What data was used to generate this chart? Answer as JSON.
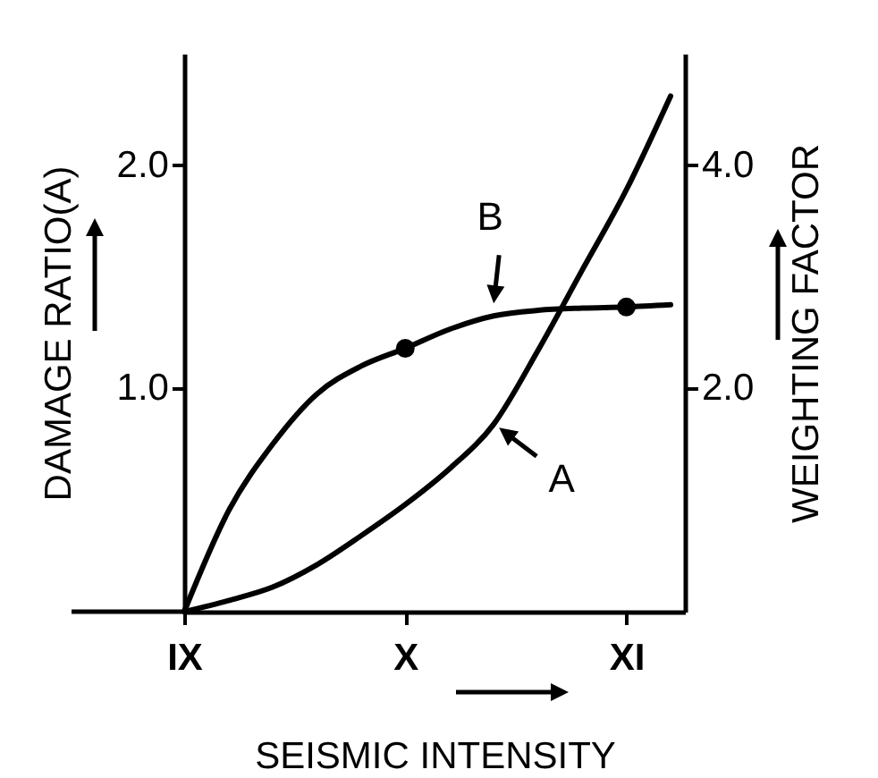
{
  "chart_data": {
    "type": "line",
    "xlabel": "SEISMIC INTENSITY",
    "ylabel": "DAMAGE RATIO(A)",
    "y2label": "WEIGHTING FACTOR",
    "categories": [
      "IX",
      null,
      null,
      null,
      null,
      "X",
      null,
      null,
      null,
      null,
      "XI",
      null
    ],
    "ylim": [
      0,
      2.5
    ],
    "yticks": [
      {
        "value": 1,
        "label": "1.0"
      },
      {
        "value": 2,
        "label": "2.0"
      }
    ],
    "y2lim": [
      0,
      5
    ],
    "y2ticks": [
      {
        "value": 2,
        "label": "2.0"
      },
      {
        "value": 4,
        "label": "4.0"
      }
    ],
    "line_style": "solid",
    "series": [
      {
        "name": "A",
        "color": "#000000",
        "axis": "y",
        "values": [
          0,
          0.05,
          0.11,
          0.21,
          0.34,
          0.48,
          0.64,
          0.84,
          1.17,
          1.53,
          1.89,
          2.31
        ]
      },
      {
        "name": "B",
        "color": "#000000",
        "axis": "y2",
        "values": [
          0,
          0.9,
          1.5,
          1.95,
          2.2,
          2.36,
          2.53,
          2.65,
          2.7,
          2.72,
          2.73,
          2.75
        ]
      },
      {
        "type": "scatter",
        "color": "#000000",
        "axis": "y2",
        "values": [
          null,
          null,
          null,
          null,
          null,
          2.36,
          null,
          null,
          null,
          null,
          2.73,
          null
        ]
      }
    ]
  }
}
